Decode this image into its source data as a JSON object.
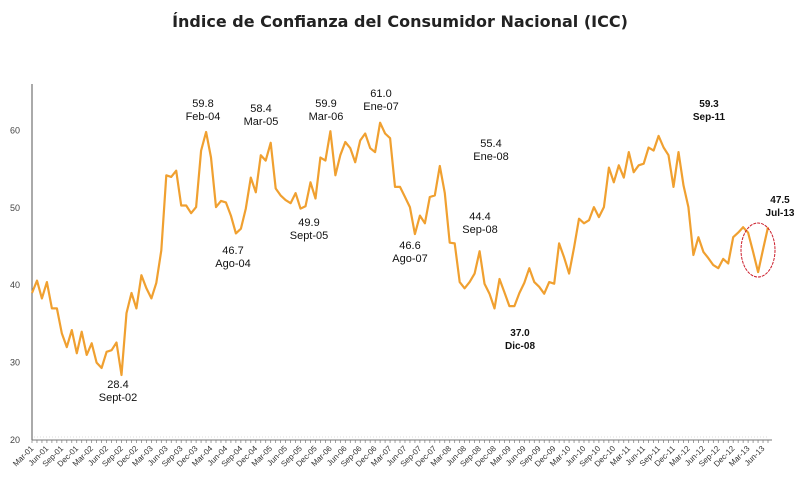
{
  "chart_data": {
    "type": "line",
    "title": "Índice de Confianza del Consumidor Nacional (ICC)",
    "xlabel": "",
    "ylabel": "",
    "ylim": [
      20,
      66
    ],
    "yticks": [
      20,
      30,
      40,
      50,
      60
    ],
    "grid": false,
    "line_color": "#F0A030",
    "highlight_color": "#CC1F2D",
    "x": [
      "Mar-01",
      "Apr-01",
      "May-01",
      "Jun-01",
      "Jul-01",
      "Aug-01",
      "Sep-01",
      "Oct-01",
      "Nov-01",
      "Dec-01",
      "Jan-02",
      "Feb-02",
      "Mar-02",
      "Apr-02",
      "May-02",
      "Jun-02",
      "Jul-02",
      "Aug-02",
      "Sep-02",
      "Oct-02",
      "Nov-02",
      "Dec-02",
      "Jan-03",
      "Feb-03",
      "Mar-03",
      "Apr-03",
      "May-03",
      "Jun-03",
      "Jul-03",
      "Aug-03",
      "Sep-03",
      "Oct-03",
      "Nov-03",
      "Dec-03",
      "Jan-04",
      "Feb-04",
      "Mar-04",
      "Apr-04",
      "May-04",
      "Jun-04",
      "Jul-04",
      "Aug-04",
      "Sep-04",
      "Oct-04",
      "Nov-04",
      "Dec-04",
      "Jan-05",
      "Feb-05",
      "Mar-05",
      "Apr-05",
      "May-05",
      "Jun-05",
      "Jul-05",
      "Aug-05",
      "Sep-05",
      "Oct-05",
      "Nov-05",
      "Dec-05",
      "Jan-06",
      "Feb-06",
      "Mar-06",
      "Apr-06",
      "May-06",
      "Jun-06",
      "Jul-06",
      "Aug-06",
      "Sep-06",
      "Oct-06",
      "Nov-06",
      "Dec-06",
      "Jan-07",
      "Feb-07",
      "Mar-07",
      "Apr-07",
      "May-07",
      "Jun-07",
      "Jul-07",
      "Aug-07",
      "Sep-07",
      "Oct-07",
      "Nov-07",
      "Dec-07",
      "Jan-08",
      "Feb-08",
      "Mar-08",
      "Apr-08",
      "May-08",
      "Jun-08",
      "Jul-08",
      "Aug-08",
      "Sep-08",
      "Oct-08",
      "Nov-08",
      "Dec-08",
      "Jan-09",
      "Feb-09",
      "Mar-09",
      "Apr-09",
      "May-09",
      "Jun-09",
      "Jul-09",
      "Aug-09",
      "Sep-09",
      "Oct-09",
      "Nov-09",
      "Dec-09",
      "Jan-10",
      "Feb-10",
      "Mar-10",
      "Apr-10",
      "May-10",
      "Jun-10",
      "Jul-10",
      "Aug-10",
      "Sep-10",
      "Oct-10",
      "Nov-10",
      "Dec-10",
      "Jan-11",
      "Feb-11",
      "Mar-11",
      "Apr-11",
      "May-11",
      "Jun-11",
      "Jul-11",
      "Aug-11",
      "Sep-11",
      "Oct-11",
      "Nov-11",
      "Dec-11",
      "Jan-12",
      "Feb-12",
      "Mar-12",
      "Apr-12",
      "May-12",
      "Jun-12",
      "Jul-12",
      "Aug-12",
      "Sep-12",
      "Oct-12",
      "Nov-12",
      "Dec-12",
      "Jan-13",
      "Feb-13",
      "Mar-13",
      "Apr-13",
      "May-13",
      "Jun-13",
      "Jul-13"
    ],
    "values": [
      39.0,
      40.6,
      38.3,
      40.4,
      37.0,
      37.0,
      33.8,
      32.0,
      34.2,
      31.2,
      34.0,
      31.0,
      32.5,
      30.0,
      29.3,
      31.4,
      31.6,
      32.6,
      28.4,
      36.4,
      39.0,
      37.0,
      41.3,
      39.6,
      38.3,
      40.3,
      44.5,
      54.2,
      54.0,
      54.8,
      50.3,
      50.3,
      49.3,
      50.1,
      57.4,
      59.8,
      56.5,
      50.1,
      50.9,
      50.7,
      49.0,
      46.7,
      47.3,
      49.9,
      53.9,
      52.0,
      56.8,
      56.1,
      58.4,
      52.5,
      51.6,
      51.0,
      50.6,
      51.9,
      49.9,
      50.2,
      53.3,
      51.2,
      56.5,
      56.1,
      59.9,
      54.2,
      56.8,
      58.5,
      57.7,
      55.9,
      58.7,
      59.6,
      57.7,
      57.2,
      61.0,
      59.6,
      59.0,
      52.7,
      52.7,
      51.4,
      50.1,
      46.6,
      49.0,
      48.0,
      51.4,
      51.6,
      55.4,
      51.9,
      45.5,
      45.4,
      40.4,
      39.6,
      40.4,
      41.5,
      44.4,
      40.2,
      38.9,
      37.0,
      40.8,
      39.1,
      37.3,
      37.3,
      39.0,
      40.3,
      42.2,
      40.4,
      39.8,
      38.9,
      40.4,
      40.2,
      45.4,
      43.6,
      41.5,
      44.9,
      48.6,
      48.0,
      48.4,
      50.1,
      48.8,
      50.1,
      55.2,
      53.3,
      55.5,
      53.9,
      57.2,
      54.6,
      55.5,
      55.7,
      57.8,
      57.4,
      59.3,
      57.8,
      56.8,
      52.7,
      57.2,
      52.9,
      50.1,
      43.9,
      46.2,
      44.3,
      43.5,
      42.6,
      42.2,
      43.4,
      42.8,
      46.2,
      46.8,
      47.5,
      46.8,
      44.3,
      41.7,
      44.6,
      47.5
    ],
    "xtick_labels": [
      "Mar-01",
      "Jun-01",
      "Sep-01",
      "Dec-01",
      "Mar-02",
      "Jun-02",
      "Sep-02",
      "Dec-02",
      "Mar-03",
      "Jun-03",
      "Sep-03",
      "Dec-03",
      "Mar-04",
      "Jun-04",
      "Sep-04",
      "Dec-04",
      "Mar-05",
      "Jun-05",
      "Sep-05",
      "Dec-05",
      "Mar-06",
      "Jun-06",
      "Sep-06",
      "Dec-06",
      "Mar-07",
      "Jun-07",
      "Sep-07",
      "Dec-07",
      "Mar-08",
      "Jun-08",
      "Sep-08",
      "Dec-08",
      "Mar-09",
      "Jun-09",
      "Sep-09",
      "Dec-09",
      "Mar-10",
      "Jun-10",
      "Sep-10",
      "Dec-10",
      "Mar-11",
      "Jun-11",
      "Sep-11",
      "Dec-11",
      "Mar-12",
      "Jun-12",
      "Sep-12",
      "Dec-12",
      "Mar-13",
      "Jun-13"
    ],
    "annotations": [
      {
        "value": "28.4",
        "label": "Sept-02",
        "bold": false
      },
      {
        "value": "59.8",
        "label": "Feb-04",
        "bold": false
      },
      {
        "value": "46.7",
        "label": "Ago-04",
        "bold": false
      },
      {
        "value": "58.4",
        "label": "Mar-05",
        "bold": false
      },
      {
        "value": "49.9",
        "label": "Sept-05",
        "bold": false
      },
      {
        "value": "59.9",
        "label": "Mar-06",
        "bold": false
      },
      {
        "value": "61.0",
        "label": "Ene-07",
        "bold": false
      },
      {
        "value": "46.6",
        "label": "Ago-07",
        "bold": false
      },
      {
        "value": "55.4",
        "label": "Ene-08",
        "bold": false
      },
      {
        "value": "44.4",
        "label": "Sep-08",
        "bold": false
      },
      {
        "value": "37.0",
        "label": "Dic-08",
        "bold": true
      },
      {
        "value": "59.3",
        "label": "Sep-11",
        "bold": true
      },
      {
        "value": "47.5",
        "label": "Jul-13",
        "bold": true
      }
    ]
  }
}
